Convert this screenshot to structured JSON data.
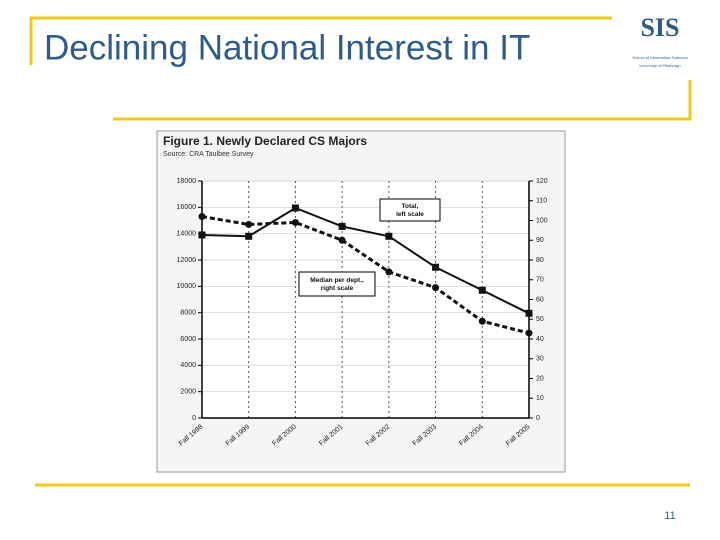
{
  "slide": {
    "title": "Declining National Interest in IT",
    "logo_line1": "School of Information Sciences",
    "logo_line2": "University of Pittsburgh",
    "page_number": "11"
  },
  "chart_data": {
    "type": "line",
    "title": "Figure 1. Newly Declared CS Majors",
    "subtitle": "Source: CRA Taulbee Survey",
    "categories": [
      "Fall 1998",
      "Fall 1999",
      "Fall 2000",
      "Fall 2001",
      "Fall 2002",
      "Fall 2003",
      "Fall 2004",
      "Fall 2005"
    ],
    "series": [
      {
        "name": "Total, left scale",
        "color": "#111111",
        "values": [
          13900,
          13800,
          15950,
          14550,
          13800,
          11450,
          9700,
          7950
        ]
      },
      {
        "name": "Median per dept., right scale",
        "color": "#111111",
        "axis": "y2",
        "values": [
          102,
          98,
          99,
          90,
          74,
          66,
          49,
          43
        ]
      }
    ],
    "ylim": [
      0,
      18000
    ],
    "yticks": [
      0,
      2000,
      4000,
      6000,
      8000,
      10000,
      12000,
      14000,
      16000,
      18000
    ],
    "y2lim": [
      0,
      120
    ],
    "y2ticks": [
      0,
      10,
      20,
      30,
      40,
      50,
      60,
      70,
      80,
      90,
      100,
      110,
      120
    ],
    "grid": true
  }
}
